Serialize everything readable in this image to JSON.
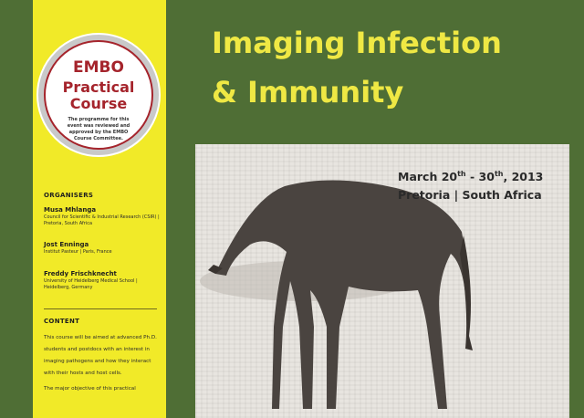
{
  "badge": {
    "line1": "EMBO",
    "line2": "Practical",
    "line3": "Course",
    "note": "The programme for this event was reviewed and approved by the EMBO Course Committee."
  },
  "organisers": {
    "label": "ORGANISERS",
    "people": [
      {
        "name": "Musa Mhlanga",
        "affiliation": "Council for Scientific & Industrial Research (CSIR) | Pretoria, South Africa"
      },
      {
        "name": "Jost Enninga",
        "affiliation": "Institut Pasteur | Paris, France"
      },
      {
        "name": "Freddy Frischknecht",
        "affiliation": "University of Heidelberg Medical School | Heidelberg, Germany"
      }
    ]
  },
  "content": {
    "label": "CONTENT",
    "para1": "This course will be aimed at advanced Ph.D. students and postdocs with an interest in imaging pathogens and how they interact with their hosts and host cells.",
    "para2": "The major objective of this practical"
  },
  "title": {
    "line1": "Imaging Infection",
    "line2": "& Immunity"
  },
  "event": {
    "date_start": "March 20",
    "date_start_sup": "th",
    "date_sep": " - 30",
    "date_end_sup": "th",
    "date_year": ", 2013",
    "location": "Pretoria | South Africa"
  },
  "colors": {
    "background": "#4f6e35",
    "sidebar": "#f1ea28",
    "title": "#efe844",
    "badge_accent": "#a5242c"
  }
}
